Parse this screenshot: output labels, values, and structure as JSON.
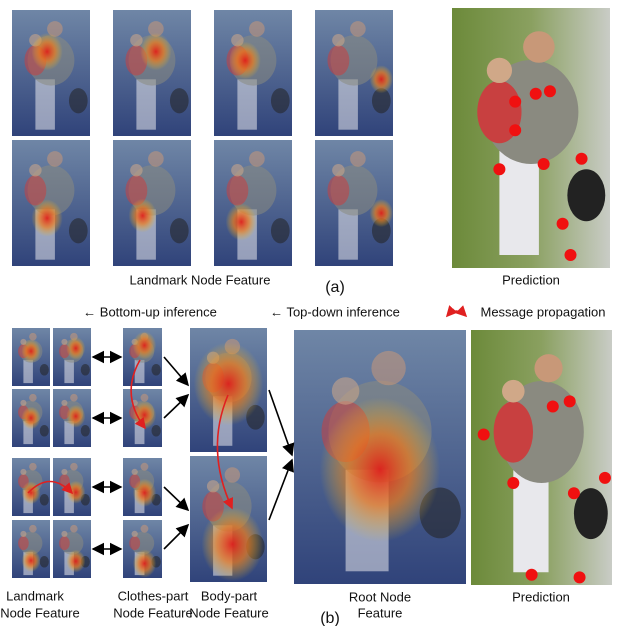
{
  "panel_a": {
    "caption_left": "Landmark Node Feature",
    "label": "(a)",
    "caption_right": "Prediction"
  },
  "legend": {
    "bottom_up": "← Bottom-up inference",
    "top_down": "← Top-down inference",
    "message": "Message propagation"
  },
  "panel_b": {
    "landmark": [
      "Landmark",
      "Node Feature"
    ],
    "clothes": [
      "Clothes-part",
      "Node Feature"
    ],
    "body": [
      "Body-part",
      "Node Feature"
    ],
    "root": [
      "Root Node",
      "Feature"
    ],
    "label": "(b)",
    "prediction": "Prediction"
  }
}
